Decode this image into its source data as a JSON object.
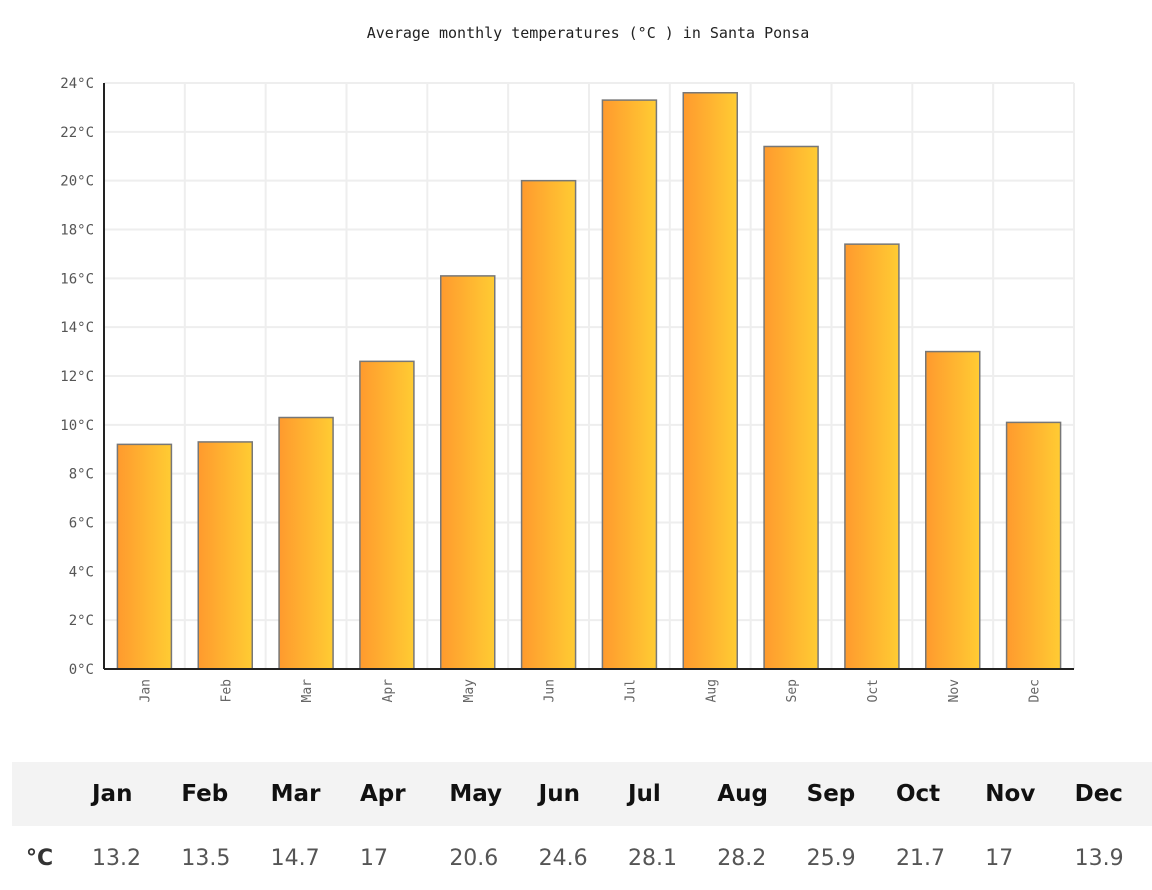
{
  "chart_data": {
    "type": "bar",
    "title": "Average monthly temperatures (°C ) in Santa Ponsa",
    "categories": [
      "Jan",
      "Feb",
      "Mar",
      "Apr",
      "May",
      "Jun",
      "Jul",
      "Aug",
      "Sep",
      "Oct",
      "Nov",
      "Dec"
    ],
    "series": [
      {
        "values": [
          9.2,
          9.3,
          10.3,
          12.6,
          16.1,
          20.0,
          23.3,
          23.6,
          21.4,
          17.4,
          13.0,
          10.1
        ]
      }
    ],
    "ylim": [
      0,
      24
    ],
    "yticks": [
      "0°C",
      "2°C",
      "4°C",
      "6°C",
      "8°C",
      "10°C",
      "12°C",
      "14°C",
      "16°C",
      "18°C",
      "20°C",
      "22°C",
      "24°C"
    ],
    "xlabel": "",
    "ylabel": "",
    "grid": true,
    "colors": {
      "bar_start": "#ff9a2e",
      "bar_end": "#ffcc33",
      "bar_stroke": "#777777",
      "grid": "#eeeeee"
    }
  },
  "table": {
    "header": [
      "",
      "Jan",
      "Feb",
      "Mar",
      "Apr",
      "May",
      "Jun",
      "Jul",
      "Aug",
      "Sep",
      "Oct",
      "Nov",
      "Dec"
    ],
    "row_label": "°C",
    "row_values": [
      "13.2",
      "13.5",
      "14.7",
      "17",
      "20.6",
      "24.6",
      "28.1",
      "28.2",
      "25.9",
      "21.7",
      "17",
      "13.9"
    ]
  }
}
